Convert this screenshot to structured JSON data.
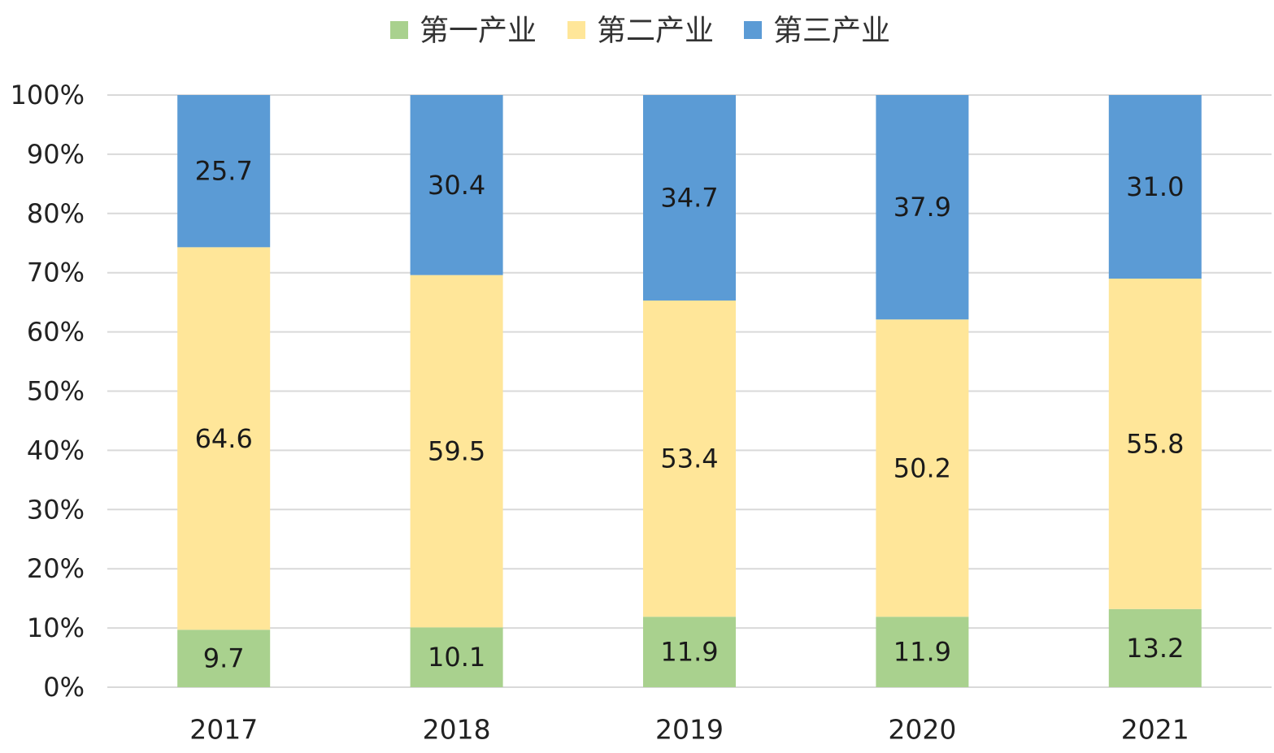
{
  "chart_data": {
    "type": "bar",
    "stacked": true,
    "categories": [
      "2017",
      "2018",
      "2019",
      "2020",
      "2021"
    ],
    "series": [
      {
        "name": "第一产业",
        "color": "#a9d18e",
        "values": [
          9.7,
          10.1,
          11.9,
          11.9,
          13.2
        ],
        "labels": [
          "9.7",
          "10.1",
          "11.9",
          "11.9",
          "13.2"
        ]
      },
      {
        "name": "第二产业",
        "color": "#ffe699",
        "values": [
          64.6,
          59.5,
          53.4,
          50.2,
          55.8
        ],
        "labels": [
          "64.6",
          "59.5",
          "53.4",
          "50.2",
          "55.8"
        ]
      },
      {
        "name": "第三产业",
        "color": "#5b9bd5",
        "values": [
          25.7,
          30.4,
          34.7,
          37.9,
          31.0
        ],
        "labels": [
          "25.7",
          "30.4",
          "34.7",
          "37.9",
          "31.0"
        ]
      }
    ],
    "ylim": [
      0,
      100
    ],
    "yticks": [
      "0%",
      "10%",
      "20%",
      "30%",
      "40%",
      "50%",
      "60%",
      "70%",
      "80%",
      "90%",
      "100%"
    ],
    "grid": true,
    "legend": "top-center",
    "title": "",
    "xlabel": "",
    "ylabel": ""
  }
}
